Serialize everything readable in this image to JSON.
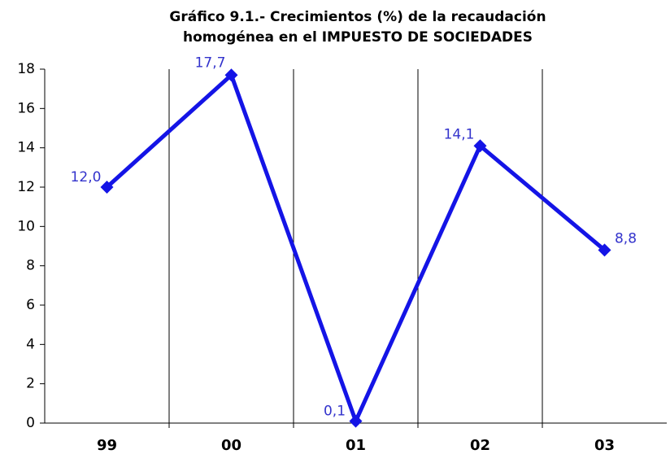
{
  "chart_data": {
    "type": "line",
    "title": [
      "Gráfico 9.1.- Crecimientos (%) de la recaudación",
      "homogénea en el IMPUESTO DE SOCIEDADES"
    ],
    "categories": [
      "99",
      "00",
      "01",
      "02",
      "03"
    ],
    "series": [
      {
        "color": "#1414e6",
        "values": [
          12.0,
          17.7,
          0.1,
          14.1,
          8.8
        ],
        "value_labels": [
          "12,0",
          "17,7",
          "0,1",
          "14,1",
          "8,8"
        ]
      }
    ],
    "ylim": [
      0,
      18
    ],
    "yticks": [
      0,
      2,
      4,
      6,
      8,
      10,
      12,
      14,
      16,
      18
    ]
  }
}
